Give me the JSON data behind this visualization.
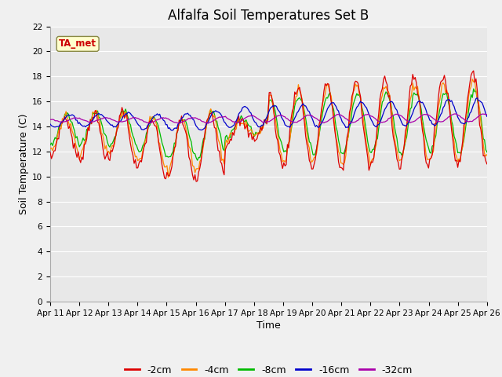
{
  "title": "Alfalfa Soil Temperatures Set B",
  "xlabel": "Time",
  "ylabel": "Soil Temperature (C)",
  "ylim": [
    0,
    22
  ],
  "yticks": [
    0,
    2,
    4,
    6,
    8,
    10,
    12,
    14,
    16,
    18,
    20,
    22
  ],
  "xtick_labels": [
    "Apr 11",
    "Apr 12",
    "Apr 13",
    "Apr 14",
    "Apr 15",
    "Apr 16",
    "Apr 17",
    "Apr 18",
    "Apr 19",
    "Apr 20",
    "Apr 21",
    "Apr 22",
    "Apr 23",
    "Apr 24",
    "Apr 25",
    "Apr 26"
  ],
  "colors": {
    "-2cm": "#dd0000",
    "-4cm": "#ff8800",
    "-8cm": "#00bb00",
    "-16cm": "#0000cc",
    "-32cm": "#aa00aa"
  },
  "annotation_label": "TA_met",
  "annotation_text_color": "#cc0000",
  "annotation_bg": "#ffffcc",
  "annotation_edge": "#888844",
  "fig_bg": "#f0f0f0",
  "plot_bg": "#e8e8e8",
  "grid_color": "#ffffff",
  "title_fontsize": 12,
  "axis_label_fontsize": 9,
  "tick_fontsize": 7.5,
  "legend_fontsize": 9
}
